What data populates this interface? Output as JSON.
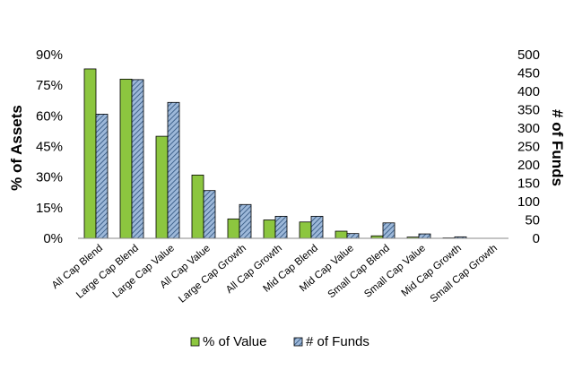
{
  "chart_data": {
    "type": "bar",
    "categories": [
      "All Cap Blend",
      "Large Cap Blend",
      "Large Cap Value",
      "All Cap Value",
      "Large Cap Growth",
      "All Cap Growth",
      "Mid Cap Blend",
      "Mid Cap Value",
      "Small Cap Blend",
      "Small Cap Value",
      "Mid Cap Growth",
      "Small Cap Growth"
    ],
    "series": [
      {
        "name": "% of Value",
        "axis": "left",
        "color": "#8cc63f",
        "values": [
          83,
          78,
          50,
          31,
          9.5,
          9,
          8,
          3.5,
          1.2,
          0.6,
          0.2,
          0
        ]
      },
      {
        "name": "# of Funds",
        "axis": "right",
        "color": "#9db8d9",
        "pattern": "diagonal-hatch",
        "values": [
          338,
          432,
          370,
          130,
          92,
          60,
          60,
          13,
          42,
          12,
          4,
          0
        ]
      }
    ],
    "ylabel": "% of Assets",
    "y2label": "# of Funds",
    "ylim": [
      0,
      90
    ],
    "yticks": [
      "0%",
      "15%",
      "30%",
      "45%",
      "60%",
      "75%",
      "90%"
    ],
    "y2lim": [
      0,
      500
    ],
    "y2ticks": [
      "0",
      "50",
      "100",
      "150",
      "200",
      "250",
      "300",
      "350",
      "400",
      "450",
      "500"
    ],
    "grid": false,
    "legend_position": "bottom"
  }
}
